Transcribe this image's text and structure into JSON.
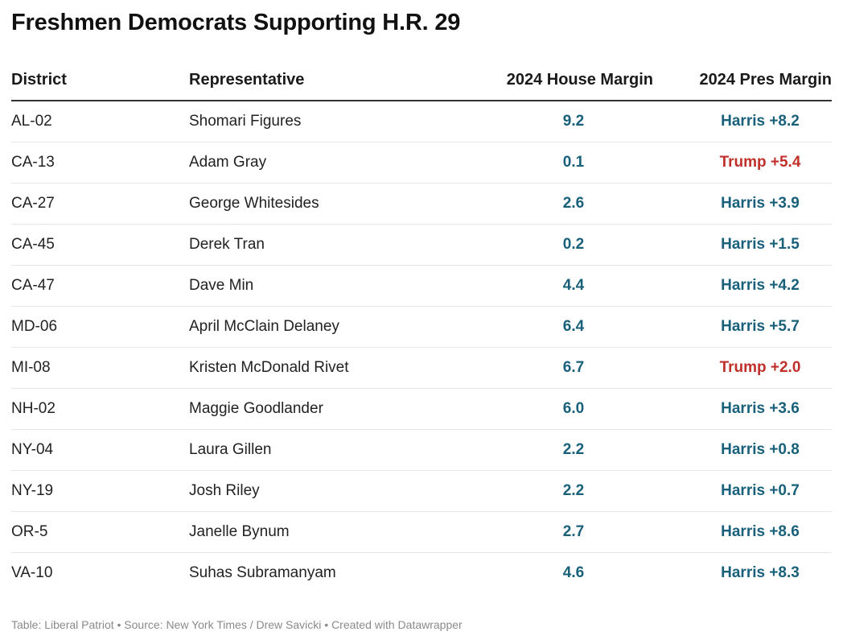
{
  "title": "Freshmen Democrats Supporting H.R. 29",
  "footer": "Table: Liberal Patriot • Source: New York Times / Drew Savicki • Created with Datawrapper",
  "colors": {
    "harris": "#19607a",
    "trump": "#c0302a",
    "house": "#19607a"
  },
  "chart_data": {
    "type": "table",
    "title": "Freshmen Democrats Supporting H.R. 29",
    "columns": [
      "District",
      "Representative",
      "2024 House Margin",
      "2024 Pres Margin"
    ],
    "rows": [
      {
        "district": "AL-02",
        "representative": "Shomari Figures",
        "house_margin": "9.2",
        "pres_margin": "Harris +8.2",
        "pres_party": "harris"
      },
      {
        "district": "CA-13",
        "representative": "Adam Gray",
        "house_margin": "0.1",
        "pres_margin": "Trump +5.4",
        "pres_party": "trump"
      },
      {
        "district": "CA-27",
        "representative": "George Whitesides",
        "house_margin": "2.6",
        "pres_margin": "Harris +3.9",
        "pres_party": "harris"
      },
      {
        "district": "CA-45",
        "representative": "Derek Tran",
        "house_margin": "0.2",
        "pres_margin": "Harris +1.5",
        "pres_party": "harris"
      },
      {
        "district": "CA-47",
        "representative": "Dave Min",
        "house_margin": "4.4",
        "pres_margin": "Harris +4.2",
        "pres_party": "harris"
      },
      {
        "district": "MD-06",
        "representative": "April McClain Delaney",
        "house_margin": "6.4",
        "pres_margin": "Harris +5.7",
        "pres_party": "harris"
      },
      {
        "district": "MI-08",
        "representative": "Kristen McDonald Rivet",
        "house_margin": "6.7",
        "pres_margin": "Trump +2.0",
        "pres_party": "trump"
      },
      {
        "district": "NH-02",
        "representative": "Maggie Goodlander",
        "house_margin": "6.0",
        "pres_margin": "Harris +3.6",
        "pres_party": "harris"
      },
      {
        "district": "NY-04",
        "representative": "Laura Gillen",
        "house_margin": "2.2",
        "pres_margin": "Harris +0.8",
        "pres_party": "harris"
      },
      {
        "district": "NY-19",
        "representative": "Josh Riley",
        "house_margin": "2.2",
        "pres_margin": "Harris +0.7",
        "pres_party": "harris"
      },
      {
        "district": "OR-5",
        "representative": "Janelle Bynum",
        "house_margin": "2.7",
        "pres_margin": "Harris +8.6",
        "pres_party": "harris"
      },
      {
        "district": "VA-10",
        "representative": "Suhas Subramanyam",
        "house_margin": "4.6",
        "pres_margin": "Harris +8.3",
        "pres_party": "harris"
      }
    ]
  }
}
